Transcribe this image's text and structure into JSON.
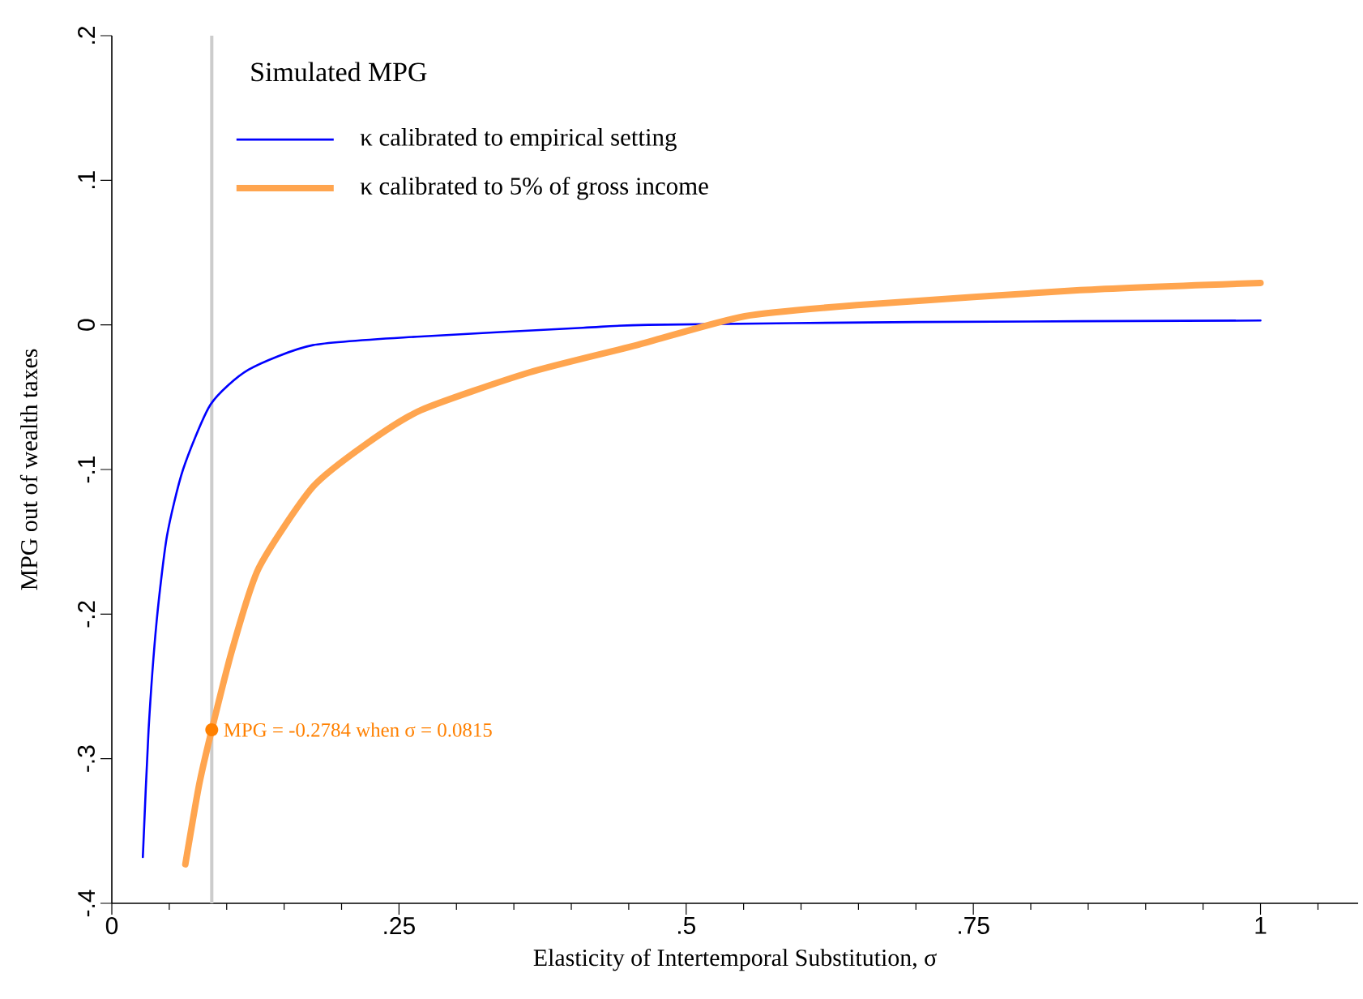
{
  "chart_data": {
    "type": "line",
    "xlabel": "Elasticity of Intertemporal Substitution,  σ",
    "ylabel": "MPG out of wealth taxes",
    "legend_title": "Simulated MPG",
    "series": [
      {
        "name": "κ calibrated to empirical setting",
        "color": "#0000ff",
        "x": [
          0.027,
          0.032,
          0.039,
          0.048,
          0.062,
          0.086,
          0.119,
          0.175,
          0.269,
          0.41,
          0.467,
          0.7,
          1.0
        ],
        "values": [
          -0.368,
          -0.28,
          -0.205,
          -0.146,
          -0.1,
          -0.055,
          -0.031,
          -0.014,
          -0.008,
          -0.002,
          0,
          0.002,
          0.003
        ]
      },
      {
        "name": "κ calibrated to 5% of gross income",
        "color": "#ffa54f",
        "x": [
          0.064,
          0.076,
          0.087,
          0.105,
          0.128,
          0.175,
          0.222,
          0.269,
          0.363,
          0.457,
          0.551,
          0.654,
          0.843,
          1.0
        ],
        "values": [
          -0.373,
          -0.318,
          -0.28,
          -0.224,
          -0.168,
          -0.112,
          -0.082,
          -0.059,
          -0.033,
          -0.014,
          0.006,
          0.014,
          0.024,
          0.029
        ]
      }
    ],
    "annotations": [
      {
        "text": "MPG = -0.2784 when  σ = 0.0815",
        "x": 0.087,
        "y": -0.28
      }
    ],
    "ref_lines": [
      {
        "axis": "x",
        "value": 0.087,
        "color": "#cccccc"
      }
    ],
    "xlim": [
      0,
      1.085
    ],
    "ylim": [
      -0.4,
      0.2
    ],
    "xticks": [
      0,
      {
        "value": 0.05,
        "label": null
      },
      {
        "value": 0.1,
        "label": null
      },
      {
        "value": 0.15,
        "label": null
      },
      {
        "value": 0.2,
        "label": null
      },
      {
        "value": 0.25,
        "label": ".25"
      },
      {
        "value": 0.3,
        "label": null
      },
      {
        "value": 0.35,
        "label": null
      },
      {
        "value": 0.4,
        "label": null
      },
      {
        "value": 0.45,
        "label": null
      },
      {
        "value": 0.5,
        "label": ".5"
      },
      {
        "value": 0.55,
        "label": null
      },
      {
        "value": 0.6,
        "label": null
      },
      {
        "value": 0.65,
        "label": null
      },
      {
        "value": 0.7,
        "label": null
      },
      {
        "value": 0.75,
        "label": ".75"
      },
      {
        "value": 0.8,
        "label": null
      },
      {
        "value": 0.85,
        "label": null
      },
      {
        "value": 0.9,
        "label": null
      },
      {
        "value": 0.95,
        "label": null
      },
      1,
      {
        "value": 1.05,
        "label": null
      }
    ],
    "yticks": [
      {
        "value": -0.4,
        "label": "-.4"
      },
      {
        "value": -0.3,
        "label": "-.3"
      },
      {
        "value": -0.2,
        "label": "-.2"
      },
      {
        "value": -0.1,
        "label": "-.1"
      },
      0,
      {
        "value": 0.1,
        "label": ".1"
      },
      {
        "value": 0.2,
        "label": ".2"
      }
    ],
    "grid": false,
    "legend": "top left",
    "marker": "none",
    "line_style": "solid"
  }
}
